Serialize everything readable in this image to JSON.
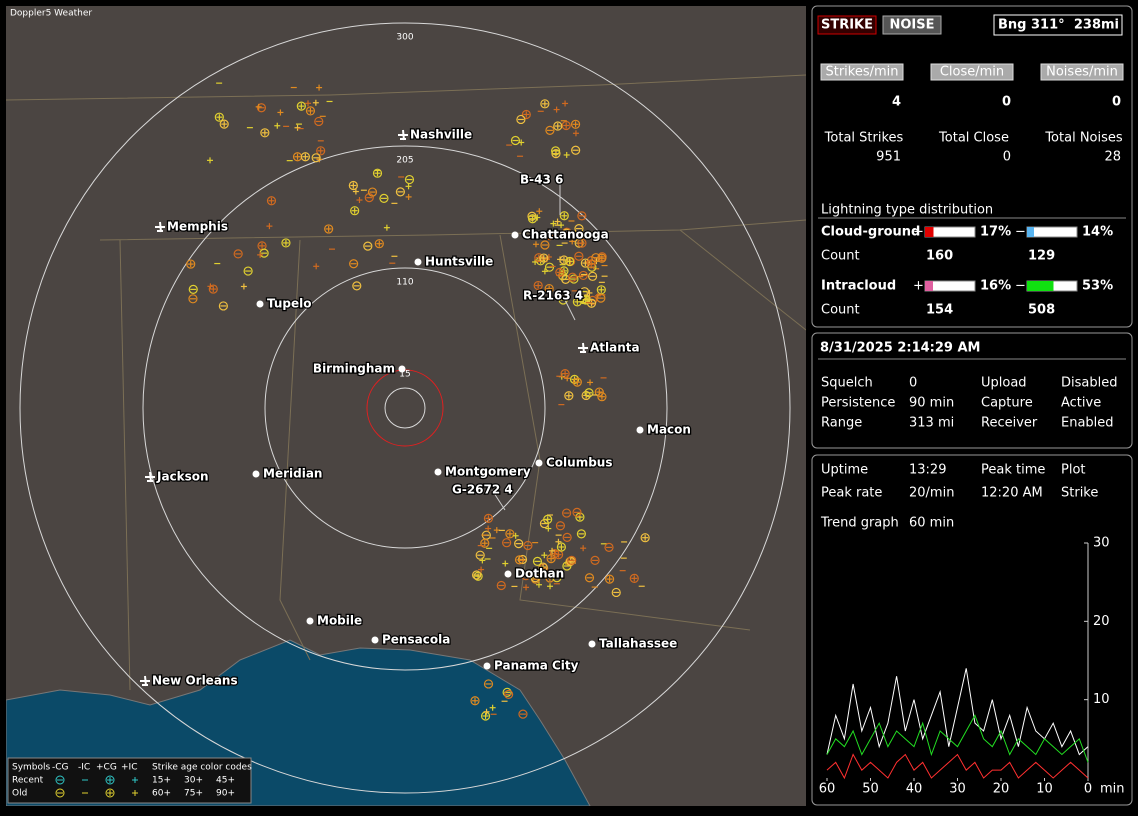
{
  "app_title": "Doppler5 Weather",
  "map": {
    "rings": [
      {
        "label": "300"
      },
      {
        "label": "205"
      },
      {
        "label": "110"
      },
      {
        "label": "15"
      }
    ],
    "cities": [
      {
        "name": "Nashville",
        "airport": true
      },
      {
        "name": "Memphis",
        "airport": true
      },
      {
        "name": "Chattanooga",
        "airport": false
      },
      {
        "name": "Huntsville",
        "airport": false
      },
      {
        "name": "Tupelo",
        "airport": false
      },
      {
        "name": "Atlanta",
        "airport": true
      },
      {
        "name": "Birmingham",
        "airport": false
      },
      {
        "name": "Macon",
        "airport": false
      },
      {
        "name": "Jackson",
        "airport": true
      },
      {
        "name": "Meridian",
        "airport": false
      },
      {
        "name": "Montgomery",
        "airport": false
      },
      {
        "name": "Columbus",
        "airport": false
      },
      {
        "name": "Dothan",
        "airport": false
      },
      {
        "name": "Mobile",
        "airport": false
      },
      {
        "name": "Pensacola",
        "airport": false
      },
      {
        "name": "Tallahassee",
        "airport": false
      },
      {
        "name": "Panama City",
        "airport": false
      },
      {
        "name": "New Orleans",
        "airport": true
      }
    ],
    "storms": [
      "B-43 6",
      "R-2163 4",
      "G-2672 4"
    ]
  },
  "legend": {
    "header": [
      "Symbols",
      "-CG",
      "-IC",
      "+CG",
      "+IC",
      "Strike age color codes"
    ],
    "rows": [
      {
        "label": "Recent",
        "ages": [
          "15+",
          "30+",
          "45+"
        ]
      },
      {
        "label": "Old",
        "ages": [
          "60+",
          "75+",
          "90+"
        ]
      }
    ]
  },
  "status": {
    "strike": "STRIKE",
    "noise": "NOISE",
    "bearing": "Bng 311°",
    "distance": "238mi"
  },
  "rates": [
    {
      "label": "Strikes/min",
      "value": 4
    },
    {
      "label": "Close/min",
      "value": 0
    },
    {
      "label": "Noises/min",
      "value": 0
    }
  ],
  "totals": [
    {
      "label": "Total Strikes",
      "value": 951
    },
    {
      "label": "Total Close",
      "value": 0
    },
    {
      "label": "Total Noises",
      "value": 28
    }
  ],
  "distribution": {
    "title": "Lightning type distribution",
    "count_label": "Count",
    "types": [
      {
        "name": "Cloud-ground",
        "parts": [
          {
            "sign": "+",
            "percent": 17,
            "percent_label": "17%",
            "count": 160,
            "color": "#e00000"
          },
          {
            "sign": "−",
            "percent": 14,
            "percent_label": "14%",
            "count": 129,
            "color": "#58b4f0"
          }
        ]
      },
      {
        "name": "Intracloud",
        "parts": [
          {
            "sign": "+",
            "percent": 16,
            "percent_label": "16%",
            "count": 154,
            "color": "#e060a0"
          },
          {
            "sign": "−",
            "percent": 53,
            "percent_label": "53%",
            "count": 508,
            "color": "#10e010"
          }
        ]
      }
    ]
  },
  "datetime": "8/31/2025 2:14:29 AM",
  "settings": [
    [
      {
        "text": "Squelch"
      },
      {
        "text": 0
      },
      {
        "text": "Upload"
      },
      {
        "text": "Disabled"
      }
    ],
    [
      {
        "text": "Persistence"
      },
      {
        "text": "90 min"
      },
      {
        "text": "Capture"
      },
      {
        "text": "Active",
        "color": "#22dd22"
      }
    ],
    [
      {
        "text": "Range"
      },
      {
        "text": "313 mi"
      },
      {
        "text": "Receiver"
      },
      {
        "text": "Enabled",
        "color": "#22dd22"
      }
    ]
  ],
  "stats": [
    [
      "Uptime",
      "13:29",
      "Peak time",
      "Plot"
    ],
    [
      "Peak rate",
      "20/min",
      "12:20 AM",
      "Strike"
    ],
    [
      "Trend graph",
      "60 min"
    ]
  ],
  "trend": {
    "type": "line",
    "x": [
      60,
      58,
      56,
      54,
      52,
      50,
      48,
      46,
      44,
      42,
      40,
      38,
      36,
      34,
      32,
      30,
      28,
      26,
      24,
      22,
      20,
      18,
      16,
      14,
      12,
      10,
      8,
      6,
      4,
      2,
      0
    ],
    "xlim": [
      60,
      0
    ],
    "xticks": [
      60,
      50,
      40,
      30,
      20,
      10,
      0
    ],
    "x_unit": "min",
    "ylim": [
      0,
      30
    ],
    "yticks": [
      10,
      20,
      30
    ],
    "series": [
      {
        "color": "#ffffff",
        "values": [
          3,
          8,
          5,
          12,
          6,
          9,
          4,
          7,
          13,
          6,
          10,
          5,
          8,
          11,
          4,
          9,
          14,
          7,
          6,
          10,
          5,
          8,
          4,
          9,
          6,
          5,
          7,
          4,
          6,
          3,
          4
        ]
      },
      {
        "color": "#22dd22",
        "values": [
          3,
          5,
          4,
          6,
          3,
          5,
          7,
          4,
          6,
          5,
          4,
          7,
          3,
          6,
          5,
          4,
          6,
          8,
          5,
          4,
          6,
          3,
          5,
          4,
          3,
          5,
          4,
          3,
          4,
          5,
          2
        ]
      },
      {
        "color": "#ff3030",
        "values": [
          1,
          2,
          0,
          3,
          1,
          2,
          1,
          0,
          2,
          3,
          1,
          2,
          0,
          1,
          2,
          3,
          1,
          2,
          0,
          1,
          1,
          2,
          0,
          1,
          2,
          1,
          0,
          1,
          2,
          1,
          0
        ]
      }
    ]
  }
}
